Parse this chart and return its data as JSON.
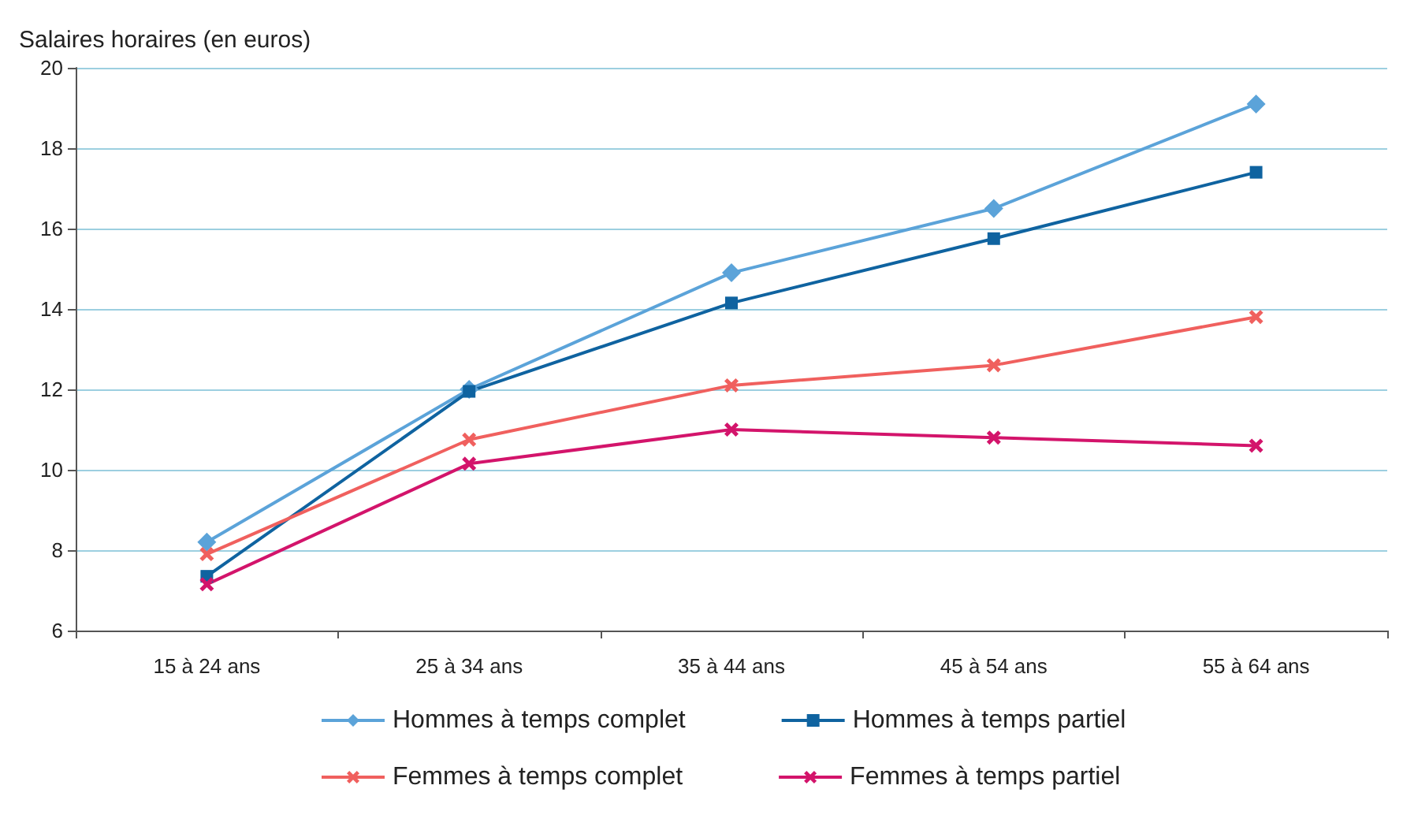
{
  "chart_data": {
    "type": "line",
    "ylabel": "Salaires horaires (en euros)",
    "categories": [
      "15 à 24 ans",
      "25 à 34 ans",
      "35 à 44 ans",
      "45 à 54 ans",
      "55 à 64 ans"
    ],
    "series": [
      {
        "name": "Hommes à temps complet",
        "color": "#5ba3d9",
        "marker": "diamond",
        "values": [
          8.2,
          12.0,
          14.9,
          16.5,
          19.1
        ]
      },
      {
        "name": "Hommes à temps partiel",
        "color": "#0f63a0",
        "marker": "square",
        "values": [
          7.35,
          11.95,
          14.15,
          15.75,
          17.4
        ]
      },
      {
        "name": "Femmes à temps complet",
        "color": "#f0605e",
        "marker": "cross",
        "values": [
          7.9,
          10.75,
          12.1,
          12.6,
          13.8
        ]
      },
      {
        "name": "Femmes à temps partiel",
        "color": "#d3146b",
        "marker": "cross",
        "values": [
          7.15,
          10.15,
          11.0,
          10.8,
          10.6
        ]
      }
    ],
    "ylim": [
      6,
      20
    ],
    "yticks": [
      6,
      8,
      10,
      12,
      14,
      16,
      18,
      20
    ],
    "grid": "y",
    "legend": "bottom",
    "line_style": "solid"
  }
}
